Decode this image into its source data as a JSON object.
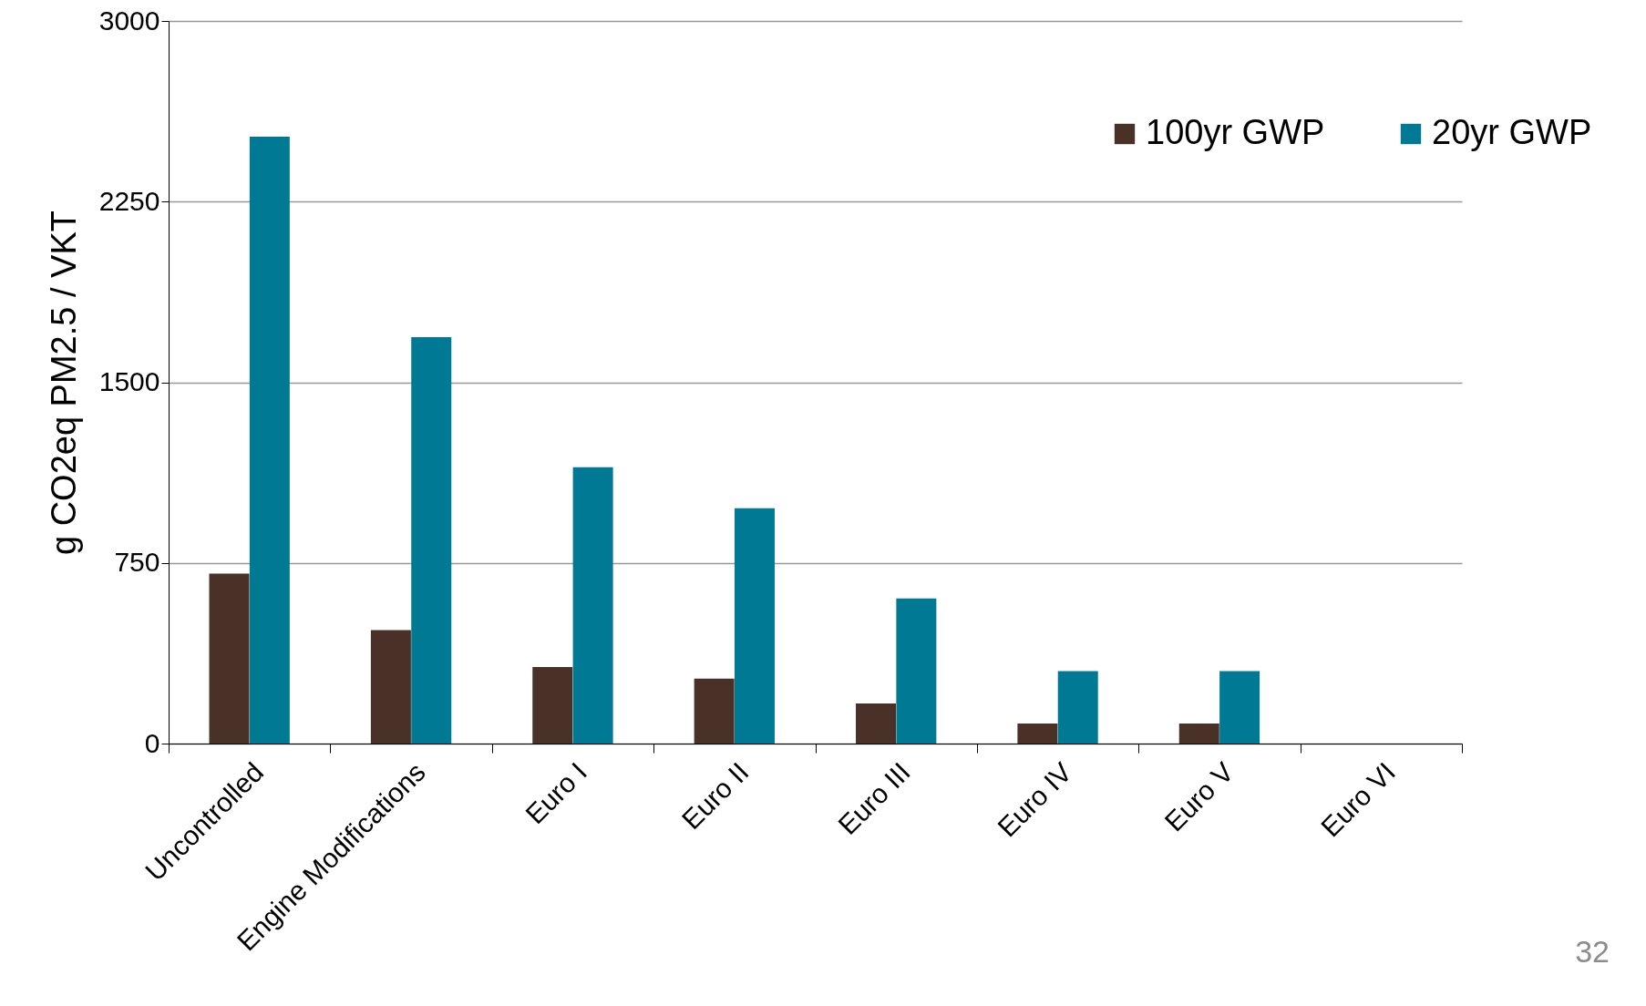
{
  "chart_data": {
    "type": "bar",
    "ylabel": "g CO2eq PM2.5 / VKT",
    "categories": [
      "Uncontrolled",
      "Engine Modifications",
      "Euro I",
      "Euro II",
      "Euro III",
      "Euro IV",
      "Euro V",
      "Euro VI"
    ],
    "series": [
      {
        "name": "100yr GWP",
        "color": "#4a3128",
        "values": [
          706,
          471,
          318,
          270,
          166,
          83,
          83,
          0
        ]
      },
      {
        "name": "20yr GWP",
        "color": "#007a94",
        "values": [
          2520,
          1687,
          1147,
          977,
          602,
          301,
          301,
          0
        ]
      }
    ],
    "ylim": [
      0,
      3000
    ],
    "yticks": [
      0,
      750,
      1500,
      2250,
      3000
    ],
    "grid": "y",
    "legend": "top right",
    "annotations": [
      "32"
    ]
  }
}
